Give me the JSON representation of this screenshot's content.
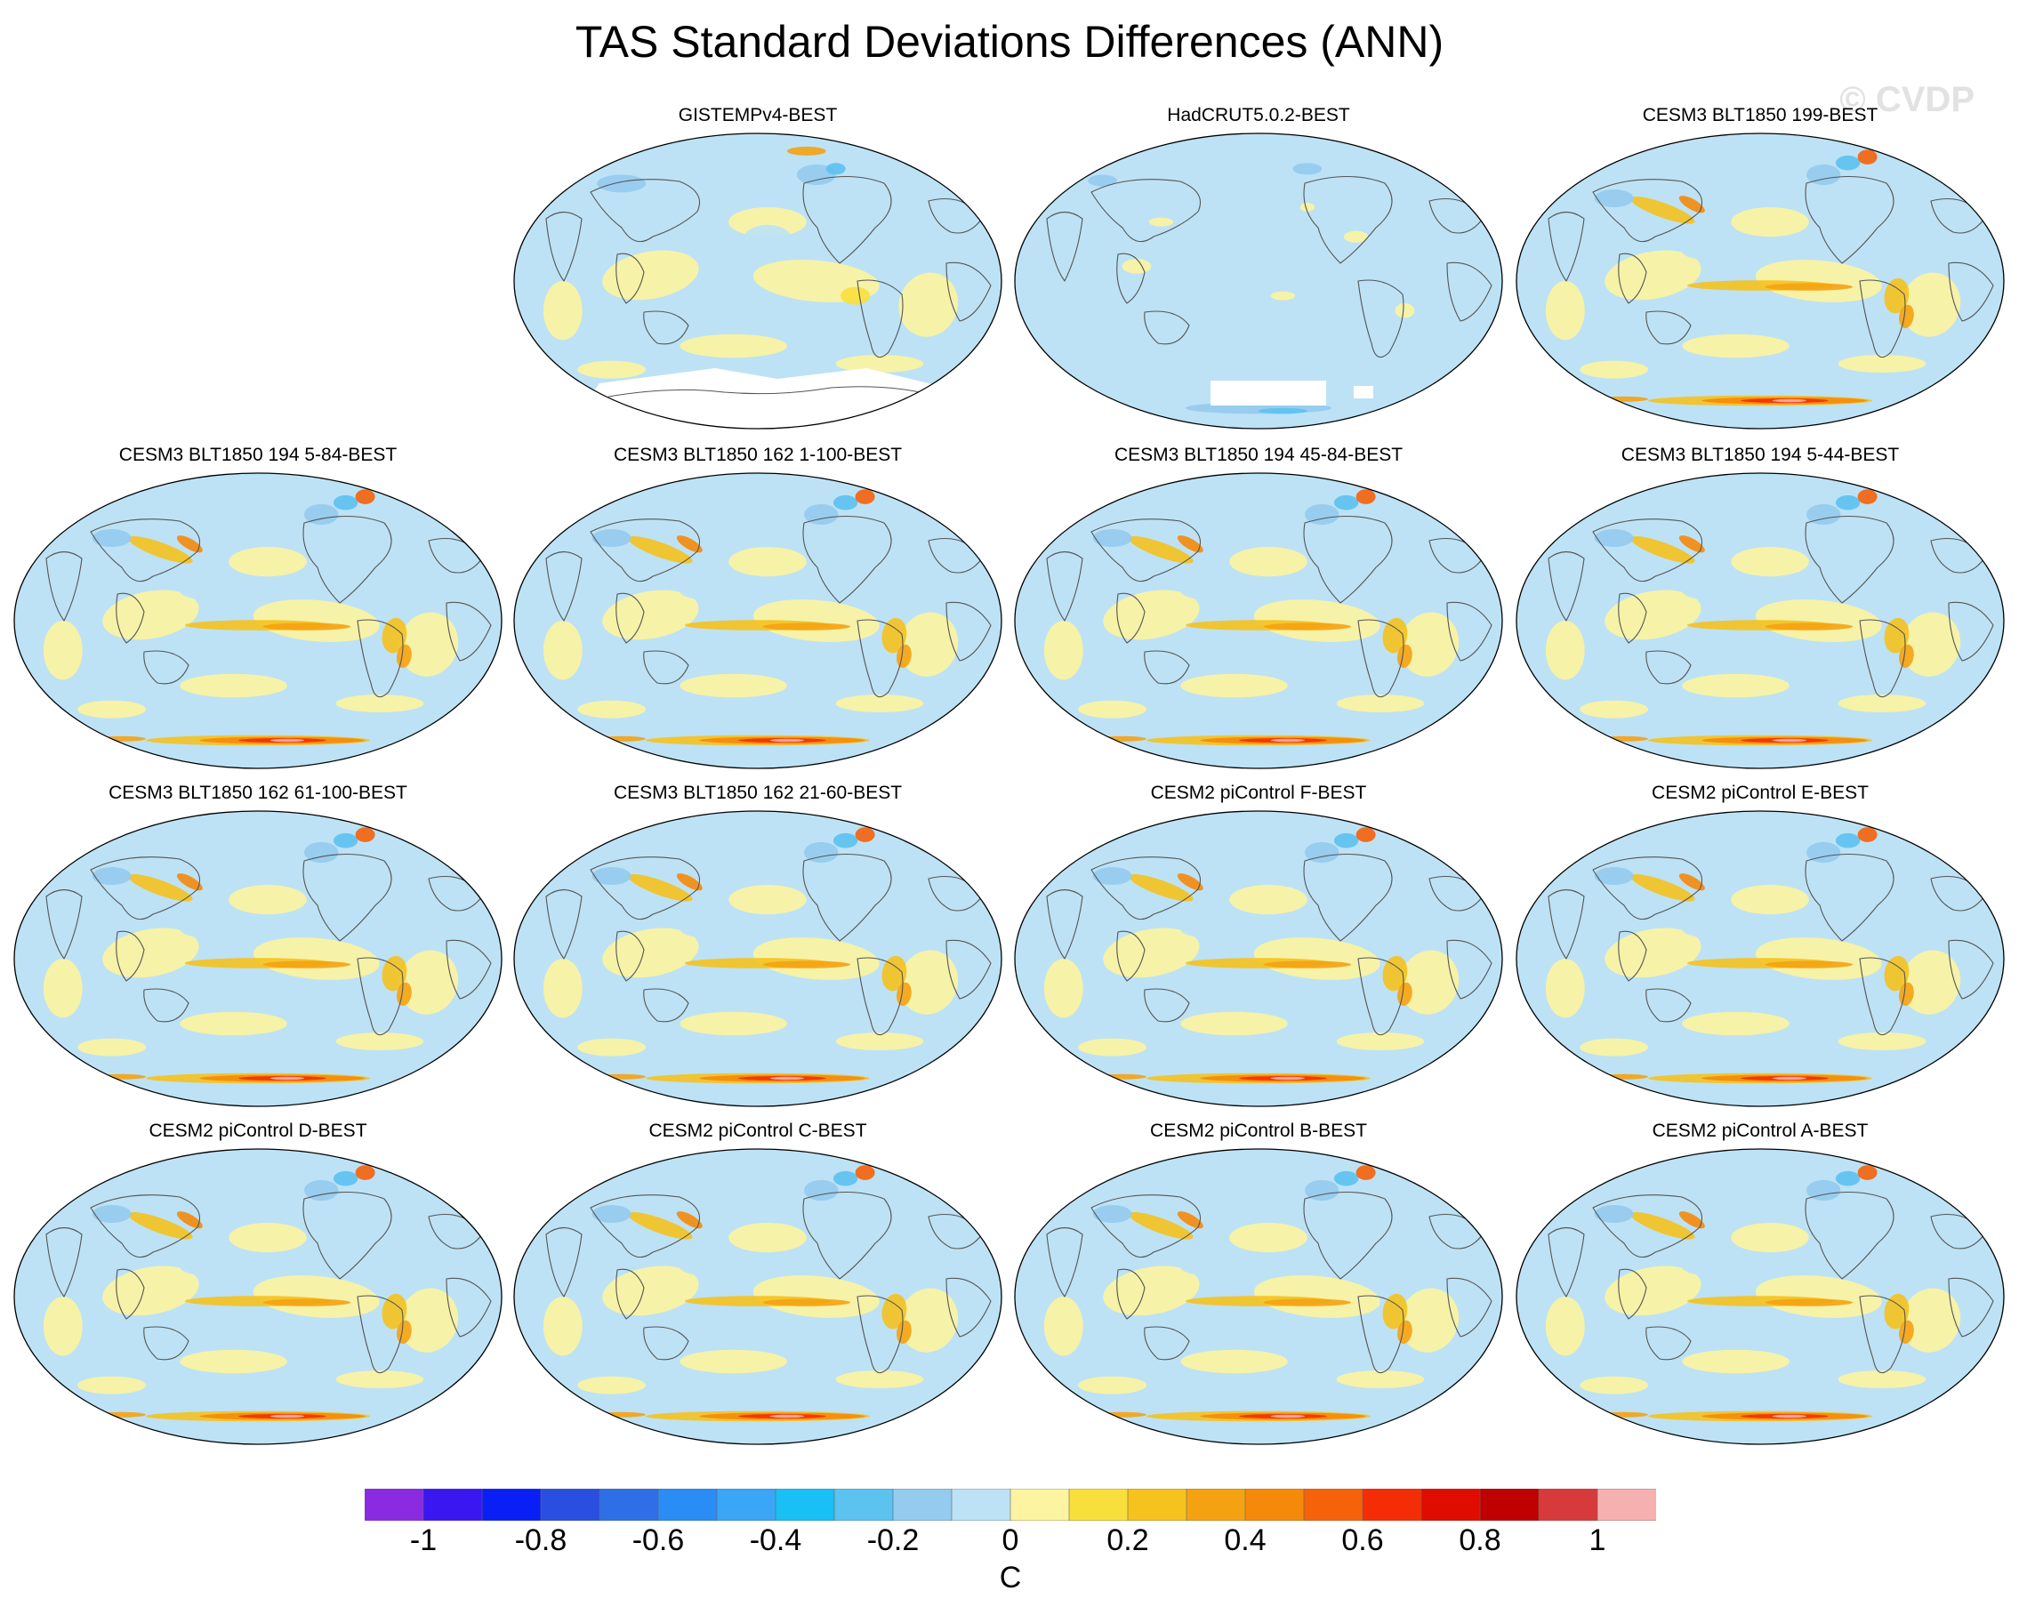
{
  "title": "TAS Standard Deviations Differences (ANN)",
  "watermark": "© CVDP",
  "colors": {
    "levels": [
      "#8a2be2",
      "#3a16f0",
      "#0a1ff5",
      "#2a4fe0",
      "#2f6fe6",
      "#2a8cf5",
      "#3aa6f5",
      "#18c0f5",
      "#5cc2f0",
      "#94cbee",
      "#bde2f5",
      "#fcf4a0",
      "#f9df3c",
      "#f5c21e",
      "#f5a212",
      "#f58a0a",
      "#f5620a",
      "#f52d06",
      "#e10c00",
      "#c00000",
      "#d73a3a",
      "#f5b0b0"
    ],
    "map_background": "#bde2f5",
    "coast": "#555555"
  },
  "colorbar": {
    "ticks": [
      "-1",
      "-0.8",
      "-0.6",
      "-0.4",
      "-0.2",
      "0",
      "0.2",
      "0.4",
      "0.6",
      "0.8",
      "1"
    ],
    "unit": "C"
  },
  "panels": [
    {
      "title": "GISTEMPv4-BEST",
      "style": "obs"
    },
    {
      "title": "HadCRUT5.0.2-BEST",
      "style": "had"
    },
    {
      "title": "CESM3 BLT1850 199-BEST",
      "style": "model"
    },
    {
      "title": "CESM3 BLT1850 194 5-84-BEST",
      "style": "model"
    },
    {
      "title": "CESM3 BLT1850 162 1-100-BEST",
      "style": "model"
    },
    {
      "title": "CESM3 BLT1850 194 45-84-BEST",
      "style": "model"
    },
    {
      "title": "CESM3 BLT1850 194 5-44-BEST",
      "style": "model"
    },
    {
      "title": "CESM3 BLT1850 162 61-100-BEST",
      "style": "model"
    },
    {
      "title": "CESM3 BLT1850 162 21-60-BEST",
      "style": "model"
    },
    {
      "title": "CESM2 piControl F-BEST",
      "style": "model"
    },
    {
      "title": "CESM2 piControl E-BEST",
      "style": "model"
    },
    {
      "title": "CESM2 piControl D-BEST",
      "style": "model"
    },
    {
      "title": "CESM2 piControl C-BEST",
      "style": "model"
    },
    {
      "title": "CESM2 piControl B-BEST",
      "style": "model"
    },
    {
      "title": "CESM2 piControl A-BEST",
      "style": "model"
    }
  ]
}
